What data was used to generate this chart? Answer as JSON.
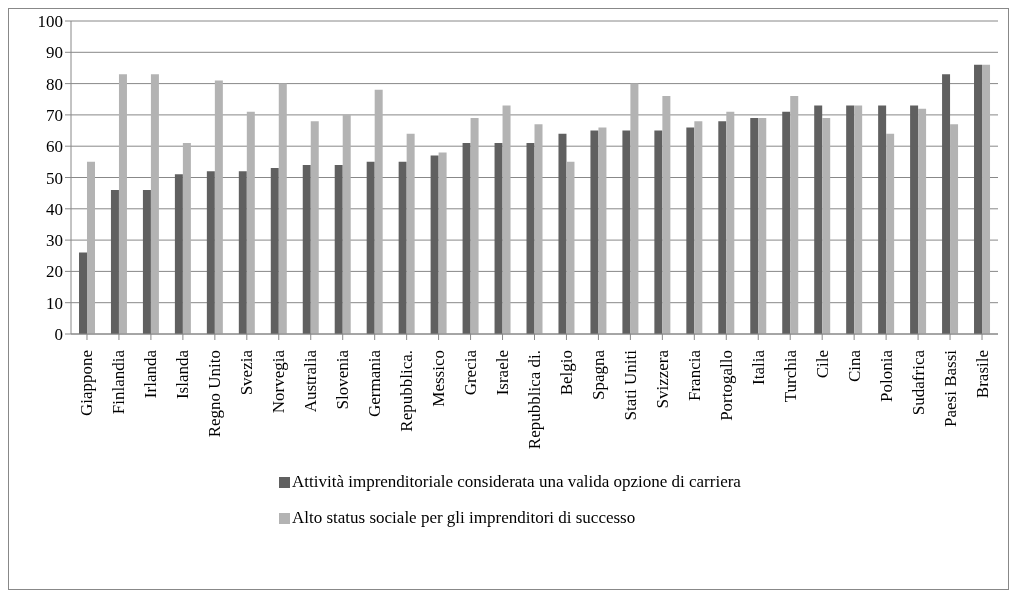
{
  "chart_data": {
    "type": "bar",
    "categories": [
      "Giappone",
      "Finlandia",
      "Irlanda",
      "Islanda",
      "Regno Unito",
      "Svezia",
      "Norvegia",
      "Australia",
      "Slovenia",
      "Germania",
      "Repubblica.",
      "Messico",
      "Grecia",
      "Israele",
      "Repubblica di.",
      "Belgio",
      "Spagna",
      "Stati Uniti",
      "Svizzera",
      "Francia",
      "Portogallo",
      "Italia",
      "Turchia",
      "Cile",
      "Cina",
      "Polonia",
      "Sudafrica",
      "Paesi Bassi",
      "Brasile"
    ],
    "series": [
      {
        "name": "Attività imprenditoriale considerata una valida opzione di carriera",
        "color": "#606060",
        "values": [
          26,
          46,
          46,
          51,
          52,
          52,
          53,
          54,
          54,
          55,
          55,
          57,
          61,
          61,
          61,
          64,
          65,
          65,
          65,
          66,
          68,
          69,
          71,
          73,
          73,
          73,
          73,
          83,
          86
        ]
      },
      {
        "name": "Alto status sociale per gli imprenditori di successo",
        "color": "#b3b3b3",
        "values": [
          55,
          83,
          83,
          61,
          81,
          71,
          80,
          68,
          70,
          78,
          64,
          58,
          69,
          73,
          67,
          55,
          66,
          80,
          76,
          68,
          71,
          69,
          76,
          69,
          73,
          64,
          72,
          67,
          86
        ]
      }
    ],
    "ylim": [
      0,
      100
    ],
    "yticks": [
      0,
      10,
      20,
      30,
      40,
      50,
      60,
      70,
      80,
      90,
      100
    ],
    "grid": "y",
    "legend": "bottom"
  }
}
